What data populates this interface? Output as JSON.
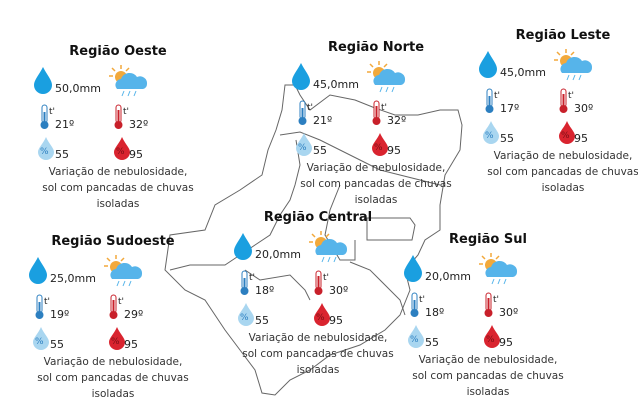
{
  "colors": {
    "rain": "#1a9fe0",
    "cold": "#2c7fc0",
    "hot": "#c8202a",
    "cloud": "#56b4ea",
    "sun": "#f2a93b",
    "humid_low": "#a9d6f0",
    "humid_high": "#d9242f"
  },
  "regions": [
    {
      "id": "oeste",
      "title": "Região Oeste",
      "rain": "50,0mm",
      "temp_min": "21º",
      "temp_max": "32º",
      "humidity_min": "55",
      "humidity_max": "95",
      "desc": [
        "Variação de nebulosidade,",
        "sol com pancadas de chuvas",
        "isoladas"
      ]
    },
    {
      "id": "norte",
      "title": "Região Norte",
      "rain": "45,0mm",
      "temp_min": "21º",
      "temp_max": "32º",
      "humidity_min": "55",
      "humidity_max": "95",
      "desc": [
        "Variação de nebulosidade,",
        "sol com pancadas de chuvas",
        "isoladas"
      ]
    },
    {
      "id": "leste",
      "title": "Região Leste",
      "rain": "45,0mm",
      "temp_min": "17º",
      "temp_max": "30º",
      "humidity_min": "55",
      "humidity_max": "95",
      "desc": [
        "Variação de nebulosidade,",
        "sol com pancadas de chuvas",
        "isoladas"
      ]
    },
    {
      "id": "central",
      "title": "Região Central",
      "rain": "20,0mm",
      "temp_min": "18º",
      "temp_max": "30º",
      "humidity_min": "55",
      "humidity_max": "95",
      "desc": [
        "Variação de nebulosidade,",
        "sol com pancadas de chuvas",
        "isoladas"
      ]
    },
    {
      "id": "sudoeste",
      "title": "Região Sudoeste",
      "rain": "25,0mm",
      "temp_min": "19º",
      "temp_max": "29º",
      "humidity_min": "55",
      "humidity_max": "95",
      "desc": [
        "Variação de nebulosidade,",
        "sol com pancadas de chuvas",
        "isoladas"
      ]
    },
    {
      "id": "sul",
      "title": "Região Sul",
      "rain": "20,0mm",
      "temp_min": "18º",
      "temp_max": "30º",
      "humidity_min": "55",
      "humidity_max": "95",
      "desc": [
        "Variação de nebulosidade,",
        "sol com pancadas de chuvas",
        "isoladas"
      ]
    }
  ],
  "thermo_label": "t'",
  "percent_symbol": "%"
}
